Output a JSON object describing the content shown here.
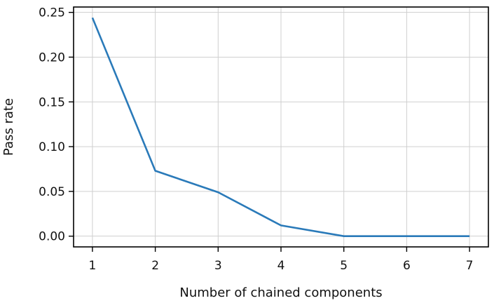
{
  "chart_data": {
    "type": "line",
    "xlabel": "Number of chained components",
    "ylabel": "Pass rate",
    "x": [
      1,
      2,
      3,
      4,
      5,
      6,
      7
    ],
    "series": [
      {
        "values": [
          0.244,
          0.073,
          0.049,
          0.012,
          0.0,
          0.0,
          0.0
        ],
        "color": "#2a7ab9"
      }
    ],
    "xlim": [
      0.7,
      7.3
    ],
    "ylim": [
      -0.012,
      0.256
    ],
    "xticks": [
      1,
      2,
      3,
      4,
      5,
      6,
      7
    ],
    "xtick_labels": [
      "1",
      "2",
      "3",
      "4",
      "5",
      "6",
      "7"
    ],
    "yticks": [
      0.0,
      0.05,
      0.1,
      0.15,
      0.2,
      0.25
    ],
    "ytick_labels": [
      "0.00",
      "0.05",
      "0.10",
      "0.15",
      "0.20",
      "0.25"
    ],
    "grid": true,
    "legend": "none"
  }
}
